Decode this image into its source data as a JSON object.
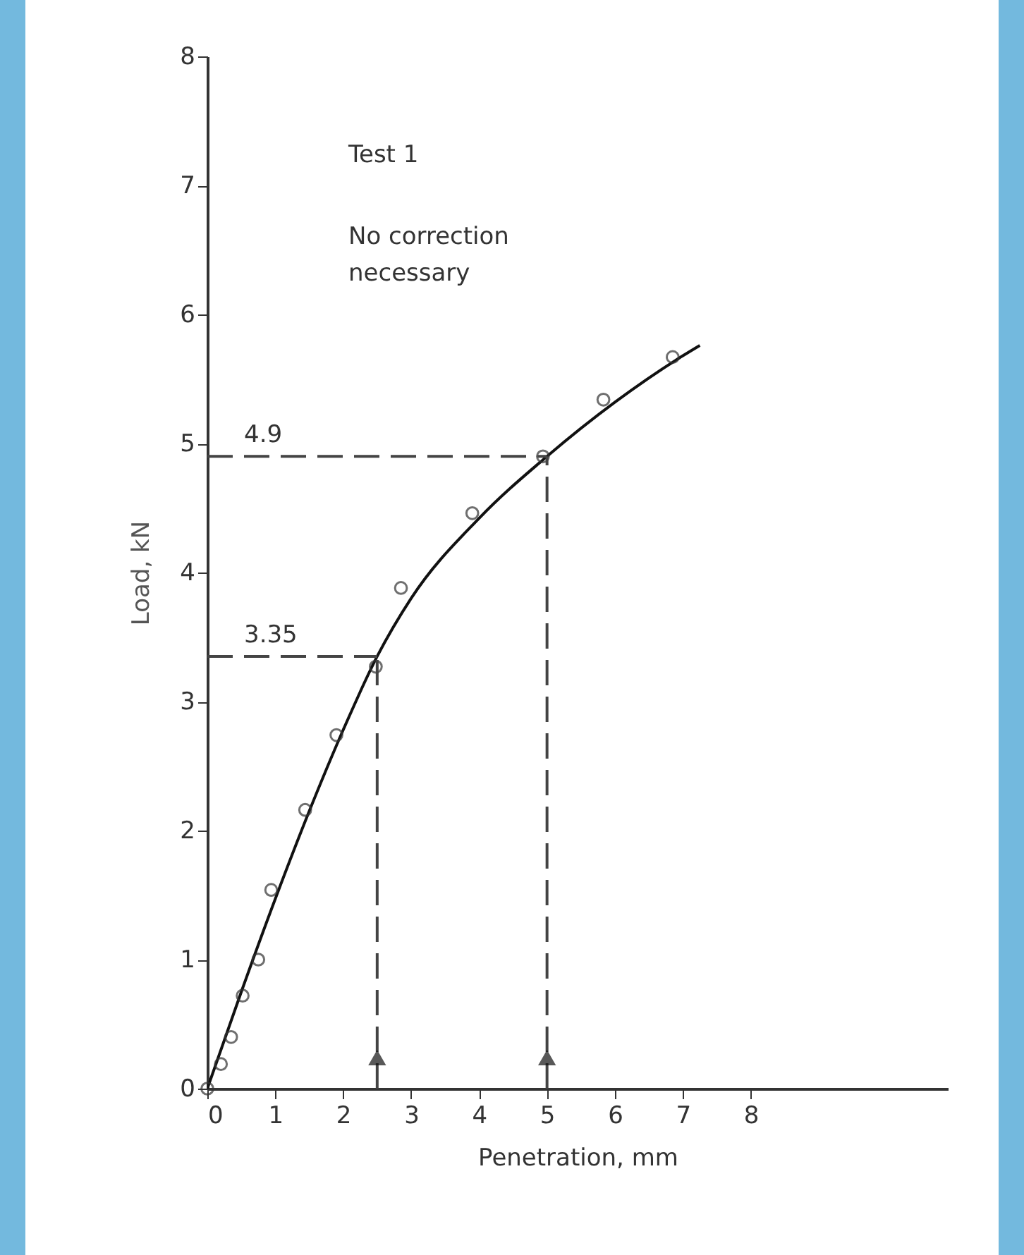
{
  "chart_data": {
    "type": "scatter",
    "xlabel": "Penetration, mm",
    "ylabel": "Load, kN",
    "xlim": [
      0,
      10.9
    ],
    "ylim": [
      0,
      8
    ],
    "xticks": [
      0,
      1,
      2,
      3,
      4,
      5,
      6,
      7,
      8
    ],
    "yticks": [
      0,
      1,
      2,
      3,
      4,
      5,
      6,
      7,
      8
    ],
    "grid": false,
    "series": [
      {
        "color": "#333333",
        "marker": "circle",
        "x": [
          0,
          0.2,
          0.35,
          0.52,
          0.75,
          0.94,
          1.44,
          1.9,
          2.48,
          2.85,
          3.9,
          4.94,
          5.83,
          6.85
        ],
        "values": [
          0,
          0.19,
          0.4,
          0.72,
          1.0,
          1.54,
          2.16,
          2.74,
          3.27,
          3.88,
          4.46,
          4.9,
          5.34,
          5.67
        ]
      },
      {
        "type": "line",
        "color": "#111111",
        "marker": "none",
        "line_style": "solid",
        "x": [
          0,
          0.5,
          1,
          1.5,
          2,
          2.5,
          3,
          4,
          5,
          6,
          7,
          7.25
        ],
        "values": [
          0,
          0.75,
          1.47,
          2.15,
          2.78,
          3.35,
          3.8,
          4.42,
          4.9,
          5.32,
          5.68,
          5.76
        ]
      }
    ],
    "ref_lines": [
      {
        "axis": "y",
        "value": 4.9,
        "label": "4.9",
        "line_style": "dashed",
        "color": "#444444"
      },
      {
        "axis": "y",
        "value": 3.35,
        "label": "3.35",
        "line_style": "dashed",
        "color": "#444444"
      },
      {
        "axis": "x",
        "value": 2.5,
        "label": null,
        "line_style": "dashed",
        "color": "#444444"
      },
      {
        "axis": "x",
        "value": 5,
        "label": null,
        "line_style": "dashed",
        "color": "#444444"
      }
    ],
    "annotations": [
      "Test 1",
      "No correction necessary"
    ]
  }
}
